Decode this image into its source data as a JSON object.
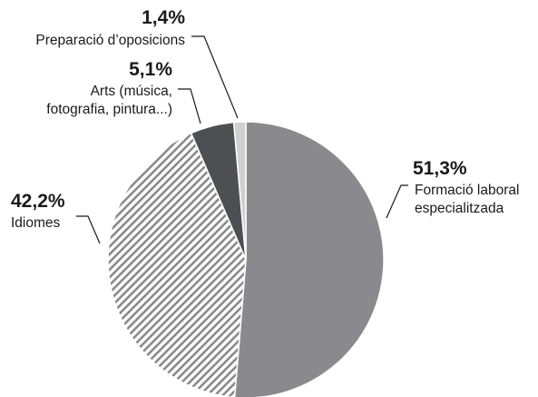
{
  "chart_data": {
    "type": "pie",
    "title": "",
    "start": "top",
    "direction": "clockwise",
    "slices": [
      {
        "label_lines": [
          "Formació laboral",
          "especialitzada"
        ],
        "value": 51.3,
        "value_label": "51,3%",
        "color": "#8a8a8e",
        "fill": "solid"
      },
      {
        "label_lines": [
          "Idiomes"
        ],
        "value": 42.2,
        "value_label": "42,2%",
        "color": "#8a8a8e",
        "fill": "hatched"
      },
      {
        "label_lines": [
          "Arts (música,",
          "fotografia, pintura...)"
        ],
        "value": 5.1,
        "value_label": "5,1%",
        "color": "#4d4f53",
        "fill": "solid"
      },
      {
        "label_lines": [
          "Preparació d’oposicions"
        ],
        "value": 1.4,
        "value_label": "1,4%",
        "color": "#cfcfd0",
        "fill": "solid"
      }
    ]
  }
}
